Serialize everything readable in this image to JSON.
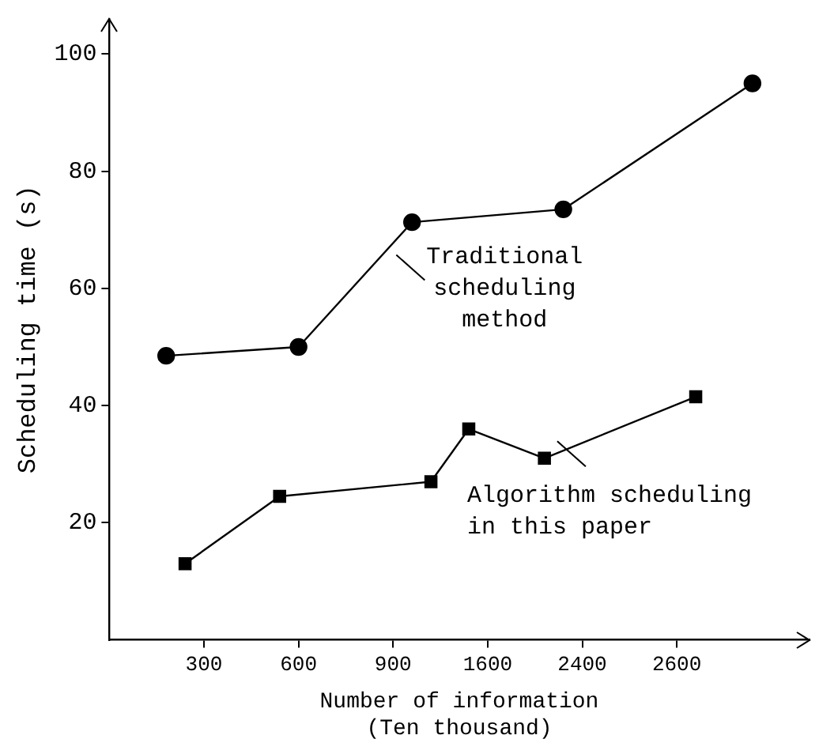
{
  "chart_data": {
    "type": "line",
    "xlabel": "Number of information\n(Ten thousand)",
    "ylabel": "Scheduling time (s)",
    "categories": [
      null,
      null,
      null,
      null,
      null,
      "300",
      null,
      null,
      null,
      null,
      "600",
      null,
      null,
      null,
      null,
      "900",
      null,
      null,
      null,
      null,
      "1600",
      null,
      null,
      null,
      null,
      "2400",
      null,
      null,
      null,
      null,
      "2600",
      null,
      null,
      null,
      null,
      null,
      null,
      null
    ],
    "ylim": [
      0,
      106
    ],
    "yticks": [
      20,
      40,
      60,
      80,
      100
    ],
    "grid": false,
    "legend": false,
    "line_style": "solid",
    "series": [
      {
        "values": [
          null,
          null,
          null,
          48.5,
          null,
          null,
          null,
          null,
          null,
          null,
          50,
          null,
          null,
          null,
          null,
          null,
          71.3,
          null,
          null,
          null,
          null,
          null,
          null,
          null,
          73.5,
          null,
          null,
          null,
          null,
          null,
          null,
          null,
          null,
          null,
          95,
          null,
          null,
          null
        ],
        "color": "#000000",
        "marker": "circle"
      },
      {
        "values": [
          null,
          null,
          null,
          null,
          13,
          null,
          null,
          null,
          null,
          24.5,
          null,
          null,
          null,
          null,
          null,
          null,
          null,
          27,
          null,
          36,
          null,
          null,
          null,
          31,
          null,
          null,
          null,
          null,
          null,
          null,
          null,
          41.5,
          null,
          null,
          null,
          null,
          null,
          null
        ],
        "color": "#000000",
        "marker": "square"
      }
    ],
    "annotations": [
      "Traditional\nscheduling\nmethod",
      "Algorithm scheduling\nin this paper"
    ]
  }
}
